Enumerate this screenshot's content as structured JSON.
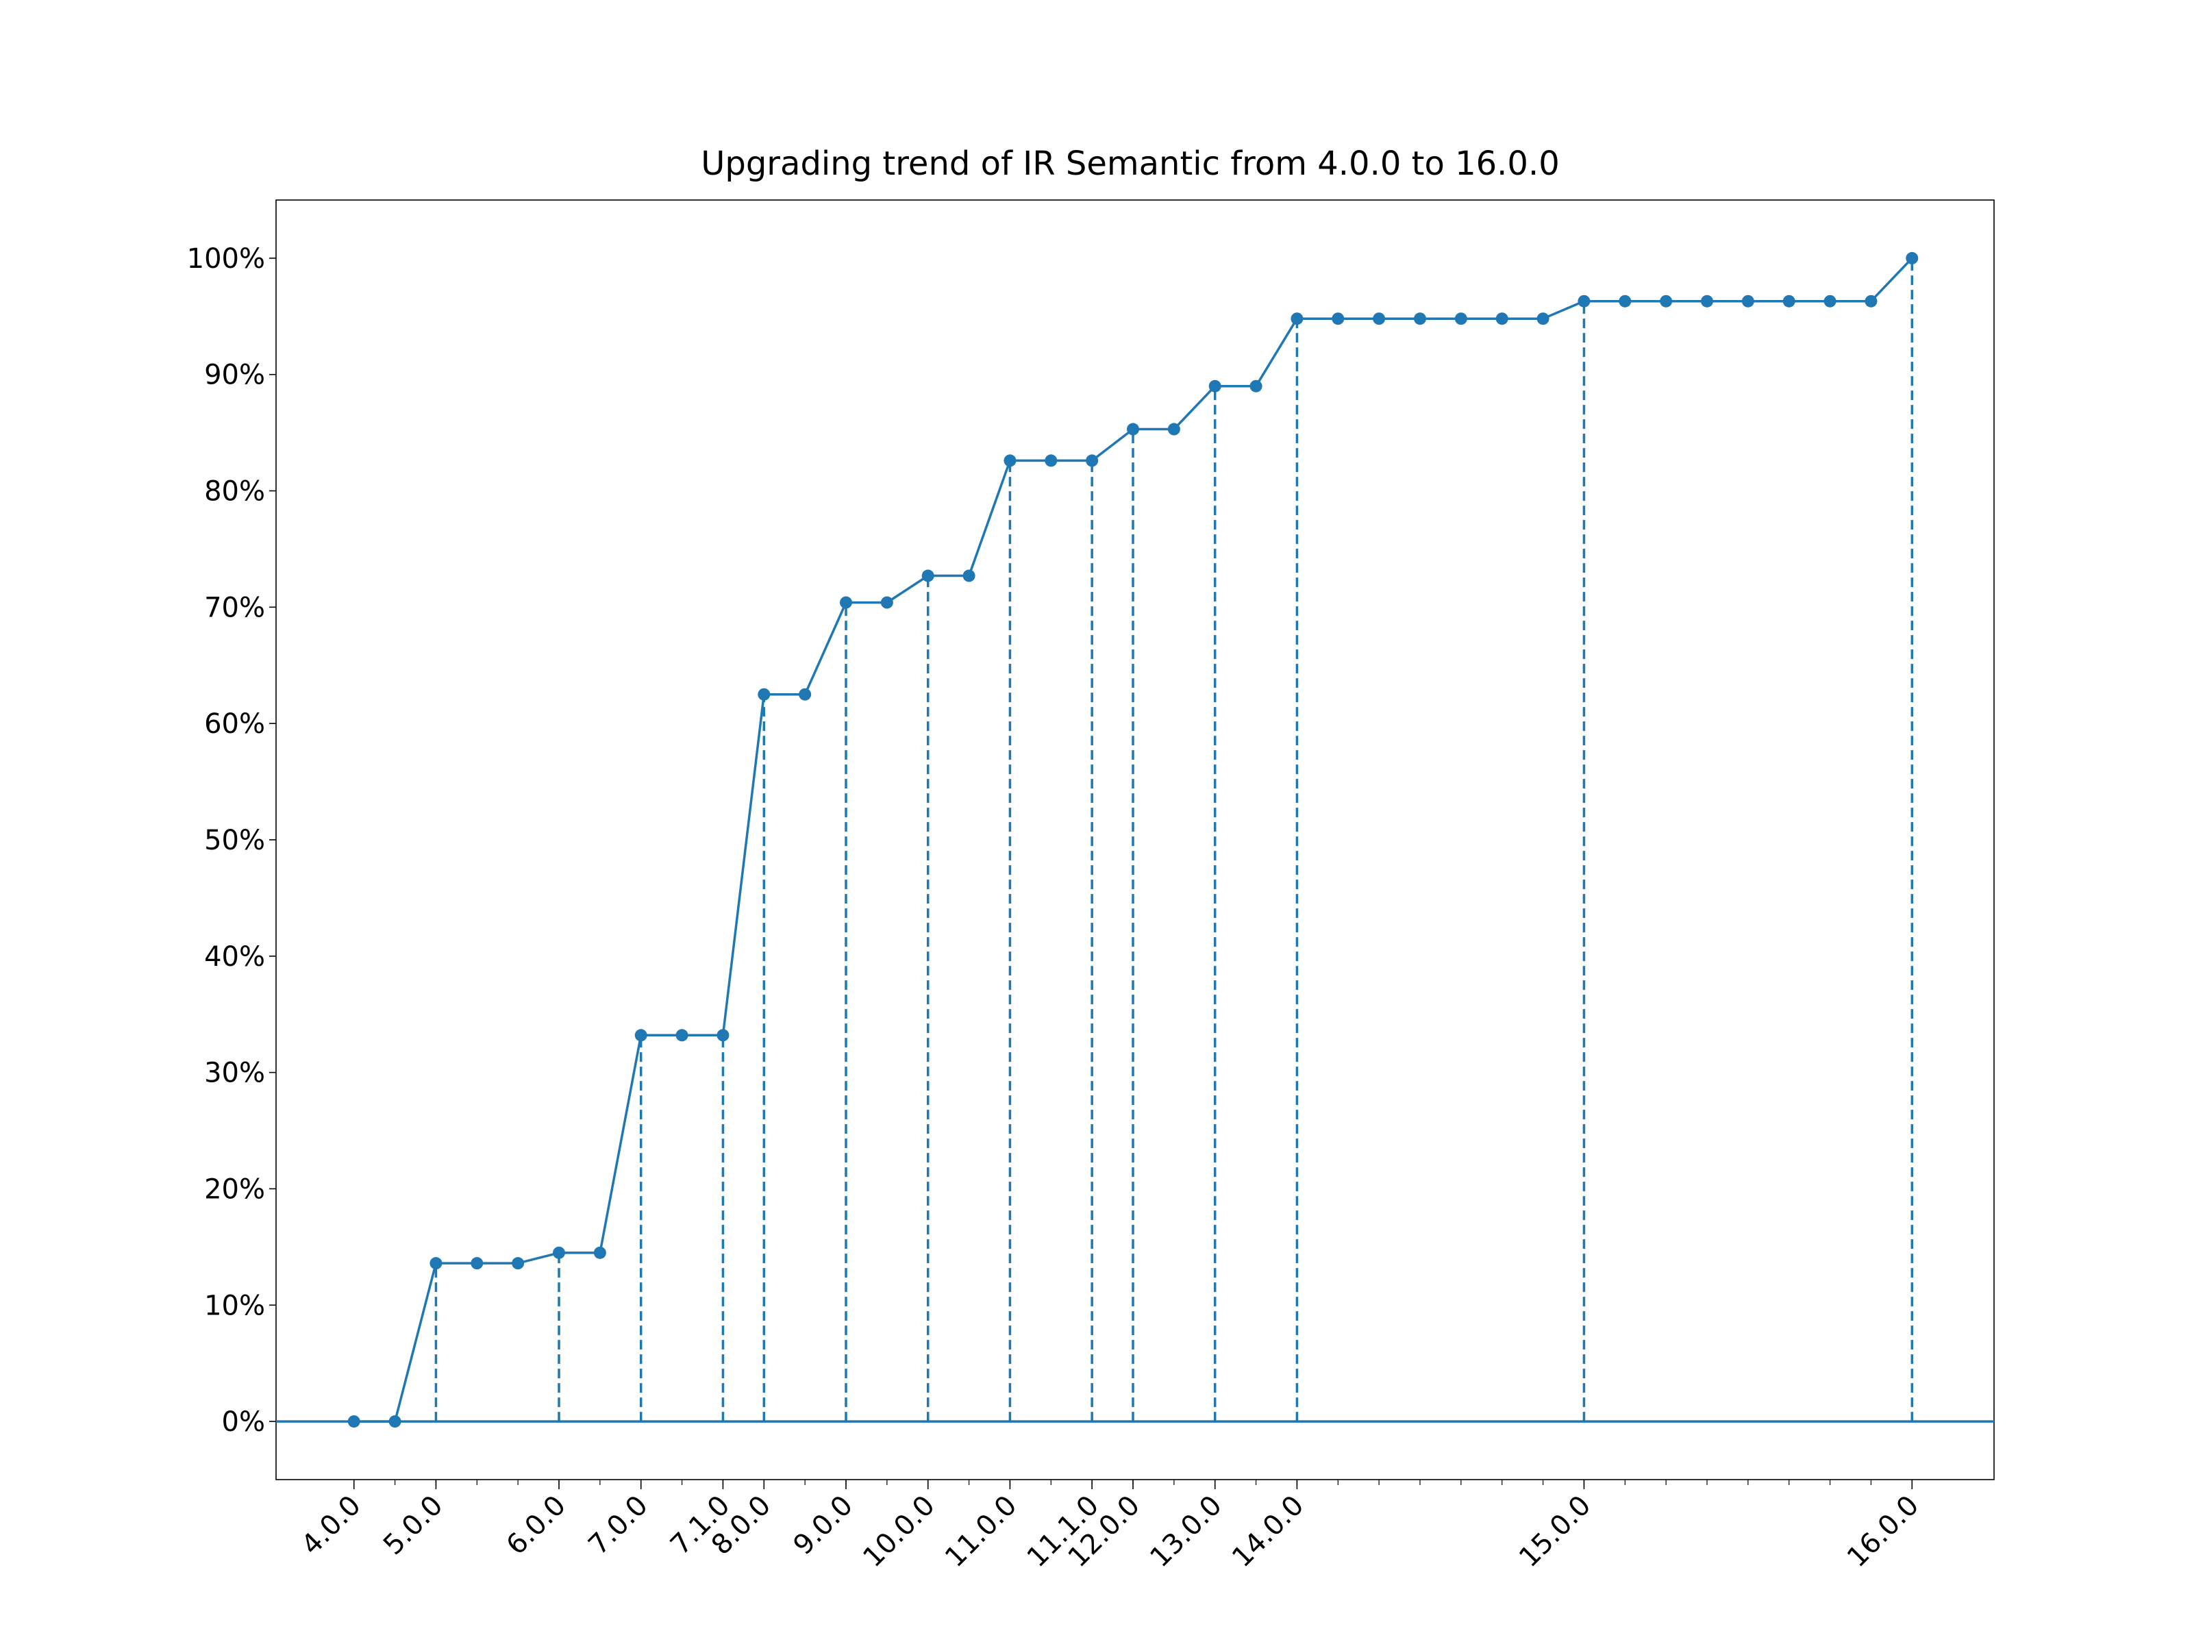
{
  "chart_data": {
    "type": "line",
    "title": "Upgrading trend of IR Semantic from 4.0.0 to 16.0.0",
    "xlabel": "",
    "ylabel": "",
    "ylim": [
      -0.05,
      1.05
    ],
    "xlim": [
      -1.9,
      40
    ],
    "y_ticks": [
      {
        "value": 0.0,
        "label": "0%"
      },
      {
        "value": 0.1,
        "label": "10%"
      },
      {
        "value": 0.2,
        "label": "20%"
      },
      {
        "value": 0.3,
        "label": "30%"
      },
      {
        "value": 0.4,
        "label": "40%"
      },
      {
        "value": 0.5,
        "label": "50%"
      },
      {
        "value": 0.6,
        "label": "60%"
      },
      {
        "value": 0.7,
        "label": "70%"
      },
      {
        "value": 0.8,
        "label": "80%"
      },
      {
        "value": 0.9,
        "label": "90%"
      },
      {
        "value": 1.0,
        "label": "100%"
      }
    ],
    "release_labels": [
      {
        "index": 0,
        "label": "4.0.0"
      },
      {
        "index": 2,
        "label": "5.0.0"
      },
      {
        "index": 5,
        "label": "6.0.0"
      },
      {
        "index": 7,
        "label": "7.0.0"
      },
      {
        "index": 9,
        "label": "7.1.0"
      },
      {
        "index": 10,
        "label": "8.0.0"
      },
      {
        "index": 12,
        "label": "9.0.0"
      },
      {
        "index": 14,
        "label": "10.0.0"
      },
      {
        "index": 16,
        "label": "11.0.0"
      },
      {
        "index": 18,
        "label": "11.1.0"
      },
      {
        "index": 19,
        "label": "12.0.0"
      },
      {
        "index": 21,
        "label": "13.0.0"
      },
      {
        "index": 23,
        "label": "14.0.0"
      },
      {
        "index": 30,
        "label": "15.0.0"
      },
      {
        "index": 38,
        "label": "16.0.0"
      }
    ],
    "dashed_release_indices": [
      2,
      5,
      7,
      9,
      10,
      12,
      14,
      16,
      18,
      19,
      21,
      23,
      30,
      38
    ],
    "x": [
      0,
      1,
      2,
      3,
      4,
      5,
      6,
      7,
      8,
      9,
      10,
      11,
      12,
      13,
      14,
      15,
      16,
      17,
      18,
      19,
      20,
      21,
      22,
      23,
      24,
      25,
      26,
      27,
      28,
      29,
      30,
      31,
      32,
      33,
      34,
      35,
      36,
      37,
      38
    ],
    "values": [
      0.0,
      0.0,
      0.136,
      0.136,
      0.136,
      0.145,
      0.145,
      0.332,
      0.332,
      0.332,
      0.625,
      0.625,
      0.704,
      0.704,
      0.727,
      0.727,
      0.826,
      0.826,
      0.826,
      0.853,
      0.853,
      0.89,
      0.89,
      0.948,
      0.948,
      0.948,
      0.948,
      0.948,
      0.948,
      0.948,
      0.963,
      0.963,
      0.963,
      0.963,
      0.963,
      0.963,
      0.963,
      0.963,
      1.0
    ],
    "series_color": "#1f77b4",
    "grid": false,
    "legend": "none"
  }
}
